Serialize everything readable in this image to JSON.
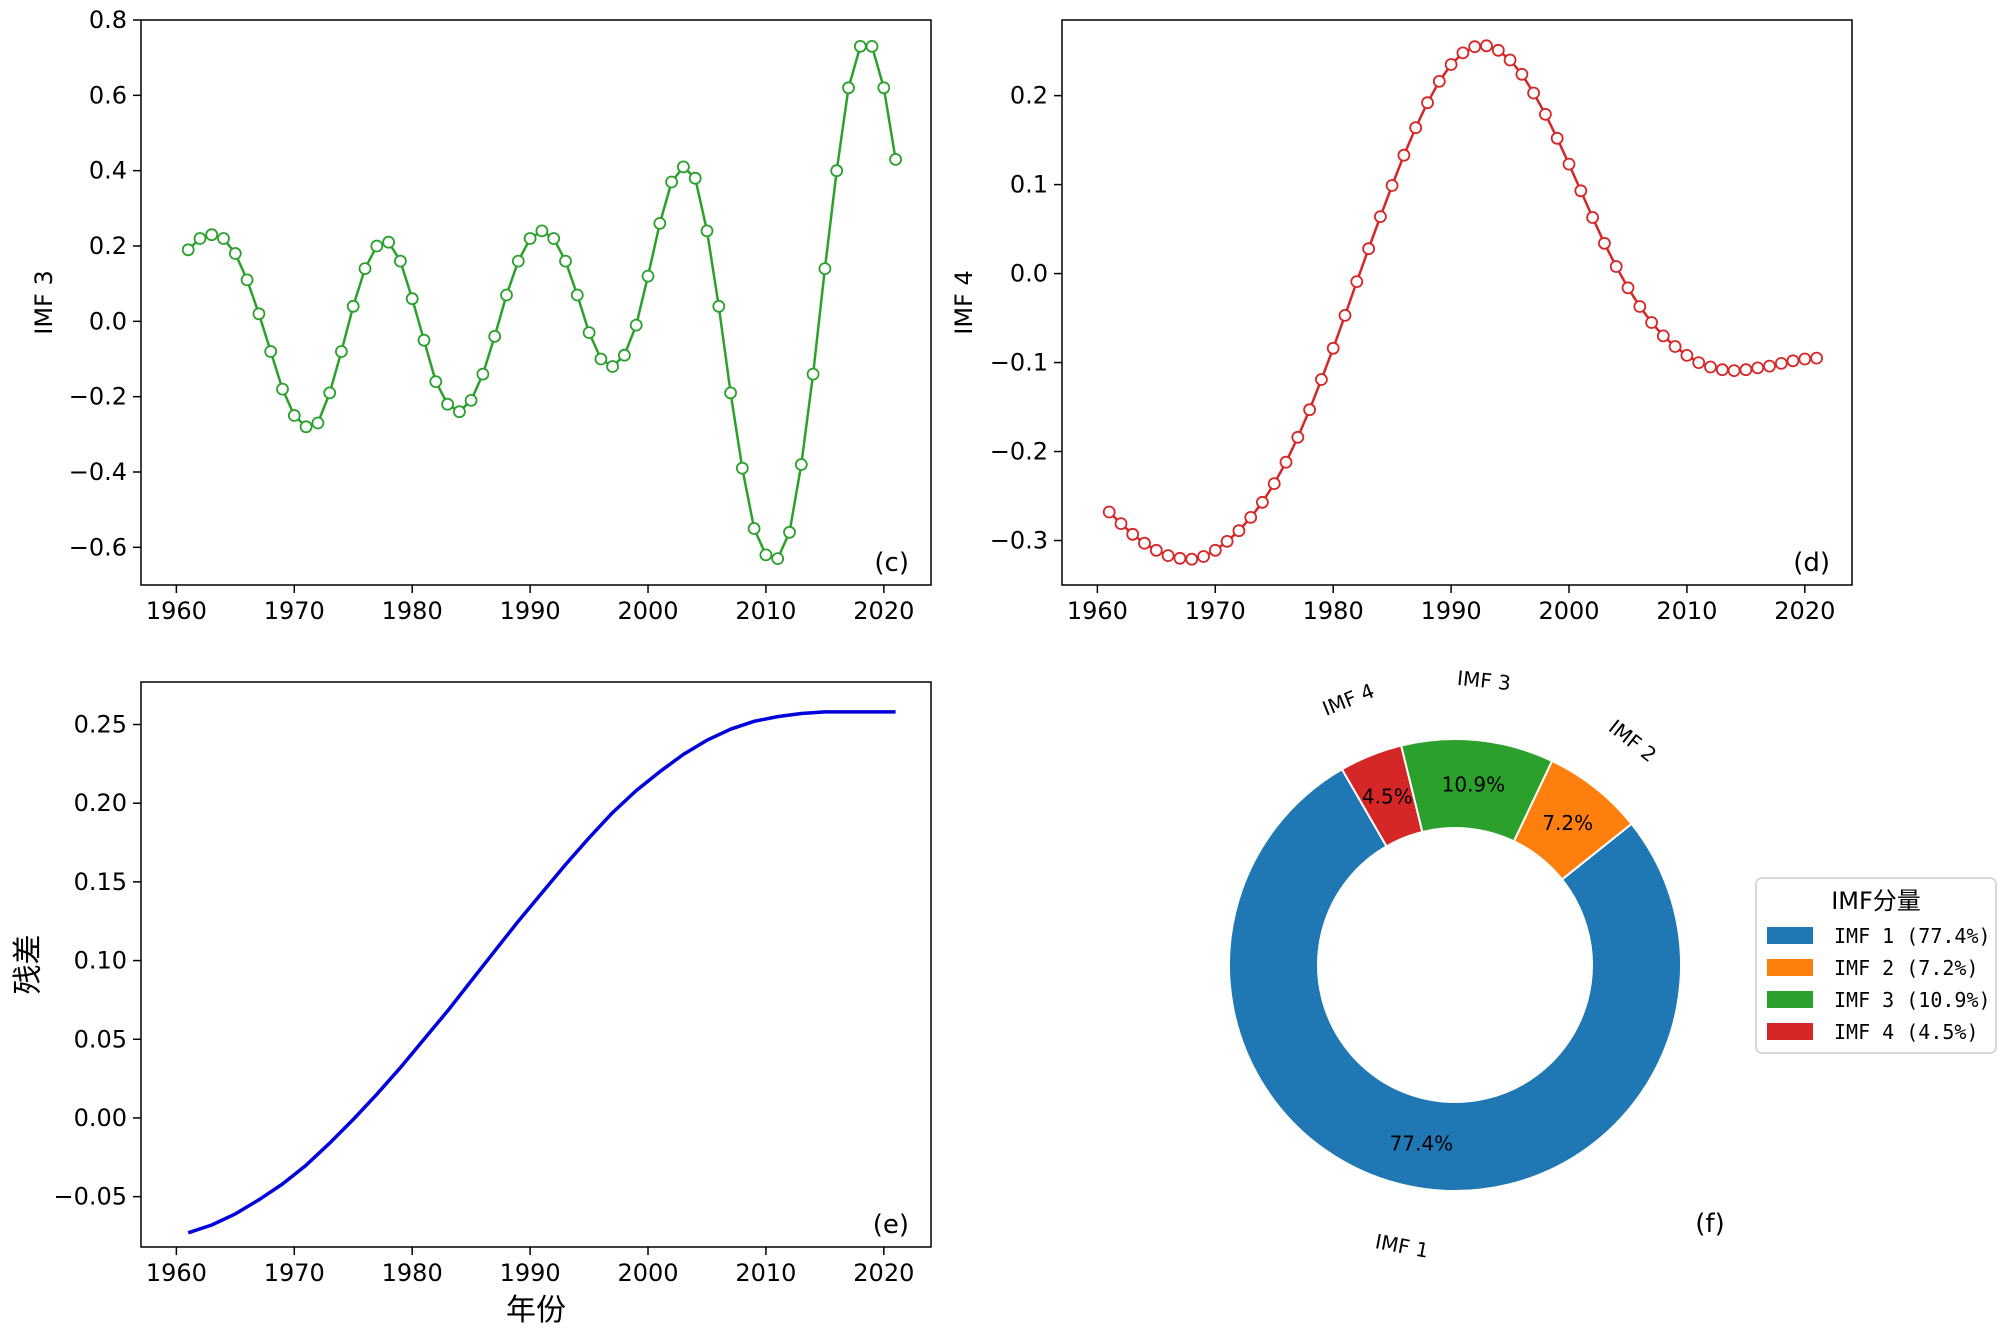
{
  "chart_data": [
    {
      "id": "c",
      "type": "line",
      "panel_tag": "(c)",
      "ylabel": "IMF 3",
      "xlabel": "",
      "xlim": [
        1957,
        2024
      ],
      "ylim": [
        -0.7,
        0.8
      ],
      "xticks": [
        1960,
        1970,
        1980,
        1990,
        2000,
        2010,
        2020
      ],
      "yticks": [
        -0.6,
        -0.4,
        -0.2,
        0.0,
        0.2,
        0.4,
        0.6,
        0.8
      ],
      "ytick_labels": [
        "−0.6",
        "−0.4",
        "−0.2",
        "0.0",
        "0.2",
        "0.4",
        "0.6",
        "0.8"
      ],
      "color": "#2ca02c",
      "markers": true,
      "series": [
        {
          "x": [
            1961,
            1962,
            1963,
            1964,
            1965,
            1966,
            1967,
            1968,
            1969,
            1970,
            1971,
            1972,
            1973,
            1974,
            1975,
            1976,
            1977,
            1978,
            1979,
            1980,
            1981,
            1982,
            1983,
            1984,
            1985,
            1986,
            1987,
            1988,
            1989,
            1990,
            1991,
            1992,
            1993,
            1994,
            1995,
            1996,
            1997,
            1998,
            1999,
            2000,
            2001,
            2002,
            2003,
            2004,
            2005,
            2006,
            2007,
            2008,
            2009,
            2010,
            2011,
            2012,
            2013,
            2014,
            2015,
            2016,
            2017,
            2018,
            2019,
            2020,
            2021
          ],
          "y": [
            0.19,
            0.22,
            0.23,
            0.22,
            0.18,
            0.11,
            0.02,
            -0.08,
            -0.18,
            -0.25,
            -0.28,
            -0.27,
            -0.19,
            -0.08,
            0.04,
            0.14,
            0.2,
            0.21,
            0.16,
            0.06,
            -0.05,
            -0.16,
            -0.22,
            -0.24,
            -0.21,
            -0.14,
            -0.04,
            0.07,
            0.16,
            0.22,
            0.24,
            0.22,
            0.16,
            0.07,
            -0.03,
            -0.1,
            -0.12,
            -0.09,
            -0.01,
            0.12,
            0.26,
            0.37,
            0.41,
            0.38,
            0.24,
            0.04,
            -0.19,
            -0.39,
            -0.55,
            -0.62,
            -0.63,
            -0.56,
            -0.38,
            -0.14,
            0.14,
            0.4,
            0.62,
            0.73,
            0.73,
            0.62,
            0.43
          ]
        }
      ]
    },
    {
      "id": "d",
      "type": "line",
      "panel_tag": "(d)",
      "ylabel": "IMF 4",
      "xlabel": "",
      "xlim": [
        1957,
        2024
      ],
      "ylim": [
        -0.35,
        0.285
      ],
      "xticks": [
        1960,
        1970,
        1980,
        1990,
        2000,
        2010,
        2020
      ],
      "yticks": [
        -0.3,
        -0.2,
        -0.1,
        0.0,
        0.1,
        0.2
      ],
      "ytick_labels": [
        "−0.3",
        "−0.2",
        "−0.1",
        "0.0",
        "0.1",
        "0.2"
      ],
      "color": "#d62728",
      "markers": true,
      "series": [
        {
          "x": [
            1961,
            1962,
            1963,
            1964,
            1965,
            1966,
            1967,
            1968,
            1969,
            1970,
            1971,
            1972,
            1973,
            1974,
            1975,
            1976,
            1977,
            1978,
            1979,
            1980,
            1981,
            1982,
            1983,
            1984,
            1985,
            1986,
            1987,
            1988,
            1989,
            1990,
            1991,
            1992,
            1993,
            1994,
            1995,
            1996,
            1997,
            1998,
            1999,
            2000,
            2001,
            2002,
            2003,
            2004,
            2005,
            2006,
            2007,
            2008,
            2009,
            2010,
            2011,
            2012,
            2013,
            2014,
            2015,
            2016,
            2017,
            2018,
            2019,
            2020,
            2021
          ],
          "y": [
            -0.268,
            -0.281,
            -0.293,
            -0.303,
            -0.311,
            -0.317,
            -0.32,
            -0.321,
            -0.318,
            -0.311,
            -0.301,
            -0.289,
            -0.274,
            -0.257,
            -0.236,
            -0.212,
            -0.184,
            -0.153,
            -0.119,
            -0.084,
            -0.047,
            -0.009,
            0.028,
            0.064,
            0.099,
            0.133,
            0.164,
            0.192,
            0.216,
            0.235,
            0.248,
            0.255,
            0.256,
            0.251,
            0.24,
            0.224,
            0.203,
            0.179,
            0.152,
            0.123,
            0.093,
            0.063,
            0.034,
            0.008,
            -0.016,
            -0.037,
            -0.055,
            -0.07,
            -0.082,
            -0.092,
            -0.1,
            -0.105,
            -0.108,
            -0.109,
            -0.108,
            -0.106,
            -0.104,
            -0.101,
            -0.098,
            -0.096,
            -0.095
          ]
        }
      ]
    },
    {
      "id": "e",
      "type": "line",
      "panel_tag": "(e)",
      "ylabel": "残差",
      "xlabel": "年份",
      "xlim": [
        1957,
        2024
      ],
      "ylim": [
        -0.082,
        0.277
      ],
      "xticks": [
        1960,
        1970,
        1980,
        1990,
        2000,
        2010,
        2020
      ],
      "yticks": [
        -0.05,
        0.0,
        0.05,
        0.1,
        0.15,
        0.2,
        0.25
      ],
      "ytick_labels": [
        "−0.05",
        "0.00",
        "0.05",
        "0.10",
        "0.15",
        "0.20",
        "0.25"
      ],
      "color": "#0000dd",
      "markers": false,
      "series": [
        {
          "x": [
            1961,
            1963,
            1965,
            1967,
            1969,
            1971,
            1973,
            1975,
            1977,
            1979,
            1981,
            1983,
            1985,
            1987,
            1989,
            1991,
            1993,
            1995,
            1997,
            1999,
            2001,
            2003,
            2005,
            2007,
            2009,
            2011,
            2013,
            2015,
            2017,
            2019,
            2021
          ],
          "y": [
            -0.073,
            -0.068,
            -0.061,
            -0.052,
            -0.042,
            -0.03,
            -0.016,
            -0.001,
            0.015,
            0.032,
            0.05,
            0.068,
            0.087,
            0.106,
            0.125,
            0.143,
            0.161,
            0.178,
            0.194,
            0.208,
            0.22,
            0.231,
            0.24,
            0.247,
            0.252,
            0.255,
            0.257,
            0.258,
            0.258,
            0.258,
            0.258
          ]
        }
      ]
    },
    {
      "id": "f",
      "type": "pie",
      "panel_tag": "(f)",
      "donut": true,
      "labels": [
        "IMF 1",
        "IMF 2",
        "IMF 3",
        "IMF 4"
      ],
      "values": [
        77.4,
        7.2,
        10.9,
        4.5
      ],
      "pct_labels": [
        "77.4%",
        "7.2%",
        "10.9%",
        "4.5%"
      ],
      "colors": [
        "#1f77b4",
        "#ff7f0e",
        "#2ca02c",
        "#d62728"
      ],
      "legend_title": "IMF分量",
      "legend_entries": [
        "IMF 1 (77.4%)",
        "IMF 2 (7.2%)",
        "IMF 3 (10.9%)",
        "IMF 4 (4.5%)"
      ],
      "legend_position": "right"
    }
  ]
}
